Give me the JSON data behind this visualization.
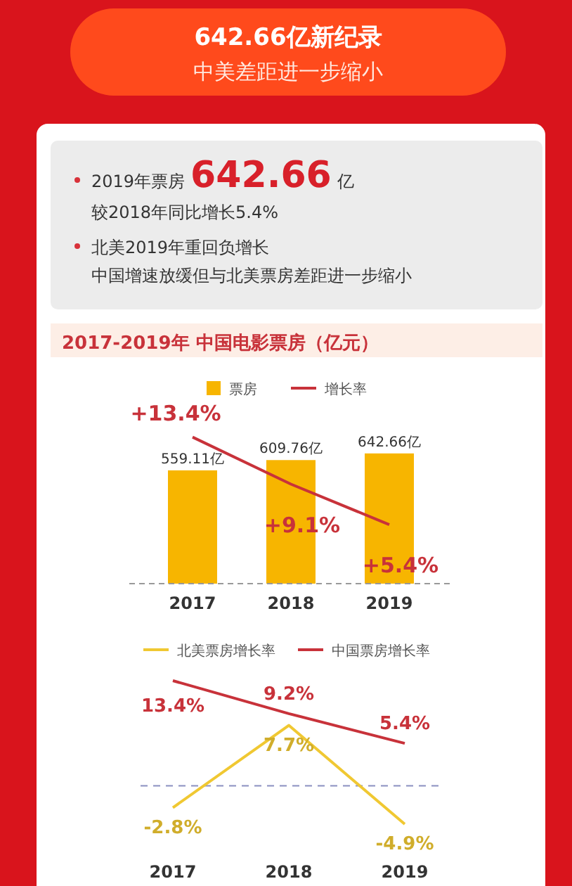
{
  "chart_data": [
    {
      "type": "other",
      "title": "642.66亿新纪录",
      "subtitle": "中美差距进一步缩小",
      "annotations": [
        "2019年票房642.66亿",
        "较2018年同比增长5.4%",
        "北美2019年重回负增长",
        "中国增速放缓但与北美票房差距进一步缩小"
      ]
    },
    {
      "type": "bar",
      "title": "2017-2019年 中国电影票房（亿元）",
      "categories": [
        "2017",
        "2018",
        "2019"
      ],
      "tick_labels": "x",
      "legend": "top",
      "series": [
        {
          "name": "票房",
          "type": "bar",
          "color": "#f7b500",
          "values": [
            559.11,
            609.76,
            642.66
          ],
          "value_labels": [
            "559.11亿",
            "609.76亿",
            "642.66亿"
          ]
        },
        {
          "name": "增长率",
          "type": "line",
          "axis": "y2",
          "color": "#c8323a",
          "marker": "none",
          "values": [
            13.4,
            9.1,
            5.4
          ],
          "value_labels": [
            "+13.4%",
            "+9.1%",
            "+5.4%"
          ]
        }
      ]
    },
    {
      "type": "line",
      "categories": [
        "2017",
        "2018",
        "2019"
      ],
      "tick_labels": "x",
      "legend": "top",
      "marker": "none",
      "ref_lines": [
        {
          "axis": "y",
          "value": 0,
          "color": "#8a8fc0",
          "line_style": "dashed"
        }
      ],
      "series": [
        {
          "name": "北美票房增长率",
          "color": "#f0c832",
          "values": [
            -2.8,
            7.7,
            -4.9
          ],
          "value_labels": [
            "-2.8%",
            "7.7%",
            "-4.9%"
          ]
        },
        {
          "name": "中国票房增长率",
          "color": "#c8323a",
          "values": [
            13.4,
            9.2,
            5.4
          ],
          "value_labels": [
            "13.4%",
            "9.2%",
            "5.4%"
          ]
        }
      ]
    }
  ]
}
